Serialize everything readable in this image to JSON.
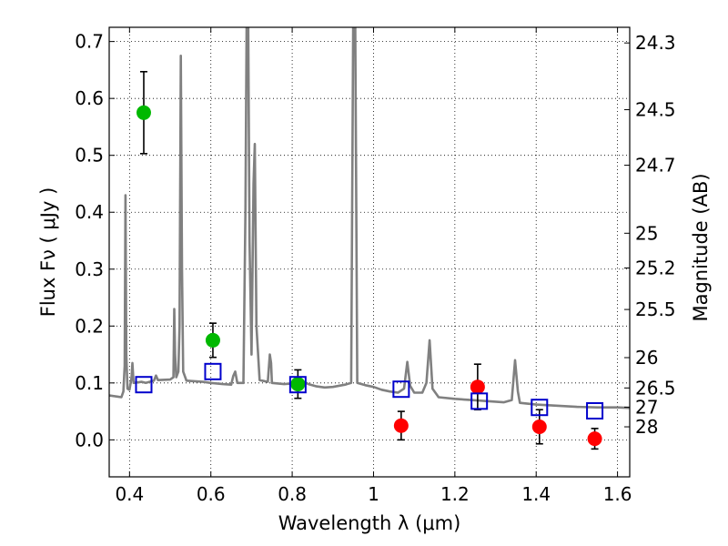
{
  "chart_data": {
    "type": "scatter",
    "title": "",
    "xlabel": "Wavelength  λ (μm)",
    "ylabel": "Flux  Fν  ( μJy )",
    "y2label": "Magnitude (AB)",
    "xlim": [
      0.35,
      1.63
    ],
    "ylim": [
      -0.065,
      0.725
    ],
    "grid": true,
    "x_ticks": [
      0.4,
      0.6,
      0.8,
      1.0,
      1.2,
      1.4,
      1.6
    ],
    "x_tick_labels": [
      "0.4",
      "0.6",
      "0.8",
      "1",
      "1.2",
      "1.4",
      "1.6"
    ],
    "y_ticks": [
      0.0,
      0.1,
      0.2,
      0.3,
      0.4,
      0.5,
      0.6,
      0.7
    ],
    "y_tick_labels": [
      "0.0",
      "0.1",
      "0.2",
      "0.3",
      "0.4",
      "0.5",
      "0.6",
      "0.7"
    ],
    "y2_ticks": [
      {
        "label": "24.3",
        "flux": 0.6975
      },
      {
        "label": "24.5",
        "flux": 0.5802
      },
      {
        "label": "24.7",
        "flux": 0.4826
      },
      {
        "label": "25",
        "flux": 0.3631
      },
      {
        "label": "25.2",
        "flux": 0.302
      },
      {
        "label": "25.5",
        "flux": 0.2291
      },
      {
        "label": "26",
        "flux": 0.1445
      },
      {
        "label": "26.5",
        "flux": 0.0912
      },
      {
        "label": "27",
        "flux": 0.0575
      },
      {
        "label": "28",
        "flux": 0.0229
      }
    ],
    "series": [
      {
        "name": "model spectrum",
        "kind": "line",
        "color": "#808080",
        "points": [
          [
            0.35,
            0.078
          ],
          [
            0.37,
            0.076
          ],
          [
            0.38,
            0.075
          ],
          [
            0.385,
            0.085
          ],
          [
            0.388,
            0.13
          ],
          [
            0.39,
            0.43
          ],
          [
            0.392,
            0.15
          ],
          [
            0.395,
            0.09
          ],
          [
            0.4,
            0.088
          ],
          [
            0.405,
            0.11
          ],
          [
            0.407,
            0.135
          ],
          [
            0.41,
            0.1
          ],
          [
            0.43,
            0.102
          ],
          [
            0.44,
            0.1
          ],
          [
            0.46,
            0.104
          ],
          [
            0.465,
            0.113
          ],
          [
            0.47,
            0.105
          ],
          [
            0.5,
            0.106
          ],
          [
            0.508,
            0.11
          ],
          [
            0.51,
            0.23
          ],
          [
            0.512,
            0.15
          ],
          [
            0.515,
            0.11
          ],
          [
            0.52,
            0.12
          ],
          [
            0.523,
            0.2
          ],
          [
            0.526,
            0.675
          ],
          [
            0.529,
            0.3
          ],
          [
            0.532,
            0.12
          ],
          [
            0.54,
            0.104
          ],
          [
            0.56,
            0.103
          ],
          [
            0.58,
            0.102
          ],
          [
            0.6,
            0.1
          ],
          [
            0.63,
            0.098
          ],
          [
            0.65,
            0.097
          ],
          [
            0.655,
            0.112
          ],
          [
            0.66,
            0.12
          ],
          [
            0.665,
            0.1
          ],
          [
            0.68,
            0.1
          ],
          [
            0.685,
            0.4
          ],
          [
            0.688,
            0.725
          ],
          [
            0.692,
            0.725
          ],
          [
            0.695,
            0.35
          ],
          [
            0.7,
            0.15
          ],
          [
            0.705,
            0.45
          ],
          [
            0.708,
            0.52
          ],
          [
            0.712,
            0.2
          ],
          [
            0.72,
            0.105
          ],
          [
            0.74,
            0.102
          ],
          [
            0.745,
            0.15
          ],
          [
            0.748,
            0.135
          ],
          [
            0.75,
            0.1
          ],
          [
            0.78,
            0.098
          ],
          [
            0.8,
            0.099
          ],
          [
            0.82,
            0.105
          ],
          [
            0.84,
            0.098
          ],
          [
            0.86,
            0.094
          ],
          [
            0.88,
            0.092
          ],
          [
            0.9,
            0.093
          ],
          [
            0.93,
            0.097
          ],
          [
            0.945,
            0.1
          ],
          [
            0.95,
            0.725
          ],
          [
            0.955,
            0.725
          ],
          [
            0.96,
            0.1
          ],
          [
            0.98,
            0.096
          ],
          [
            1.0,
            0.093
          ],
          [
            1.02,
            0.088
          ],
          [
            1.04,
            0.085
          ],
          [
            1.06,
            0.083
          ],
          [
            1.075,
            0.09
          ],
          [
            1.083,
            0.137
          ],
          [
            1.09,
            0.095
          ],
          [
            1.1,
            0.083
          ],
          [
            1.12,
            0.083
          ],
          [
            1.13,
            0.1
          ],
          [
            1.138,
            0.175
          ],
          [
            1.145,
            0.09
          ],
          [
            1.16,
            0.075
          ],
          [
            1.2,
            0.072
          ],
          [
            1.24,
            0.07
          ],
          [
            1.28,
            0.068
          ],
          [
            1.32,
            0.066
          ],
          [
            1.34,
            0.07
          ],
          [
            1.348,
            0.14
          ],
          [
            1.355,
            0.085
          ],
          [
            1.36,
            0.065
          ],
          [
            1.4,
            0.062
          ],
          [
            1.45,
            0.06
          ],
          [
            1.5,
            0.058
          ],
          [
            1.55,
            0.057
          ],
          [
            1.6,
            0.057
          ],
          [
            1.63,
            0.056
          ]
        ]
      },
      {
        "name": "green photometry",
        "kind": "circle",
        "color": "#00b800",
        "points": [
          {
            "x": 0.435,
            "y": 0.575,
            "err": 0.072
          },
          {
            "x": 0.605,
            "y": 0.175,
            "err": 0.03
          },
          {
            "x": 0.814,
            "y": 0.098,
            "err": 0.025
          }
        ]
      },
      {
        "name": "red photometry",
        "kind": "circle",
        "color": "#ff0000",
        "points": [
          {
            "x": 1.068,
            "y": 0.025,
            "err": 0.025
          },
          {
            "x": 1.256,
            "y": 0.093,
            "err": 0.04
          },
          {
            "x": 1.408,
            "y": 0.023,
            "err": 0.03
          },
          {
            "x": 1.544,
            "y": 0.002,
            "err": 0.018
          }
        ]
      },
      {
        "name": "model synthetic photometry",
        "kind": "square",
        "color": "#0000cc",
        "points": [
          {
            "x": 0.435,
            "y": 0.097
          },
          {
            "x": 0.605,
            "y": 0.12
          },
          {
            "x": 0.814,
            "y": 0.097
          },
          {
            "x": 1.068,
            "y": 0.089
          },
          {
            "x": 1.26,
            "y": 0.068
          },
          {
            "x": 1.408,
            "y": 0.057
          },
          {
            "x": 1.544,
            "y": 0.051
          }
        ]
      }
    ]
  }
}
